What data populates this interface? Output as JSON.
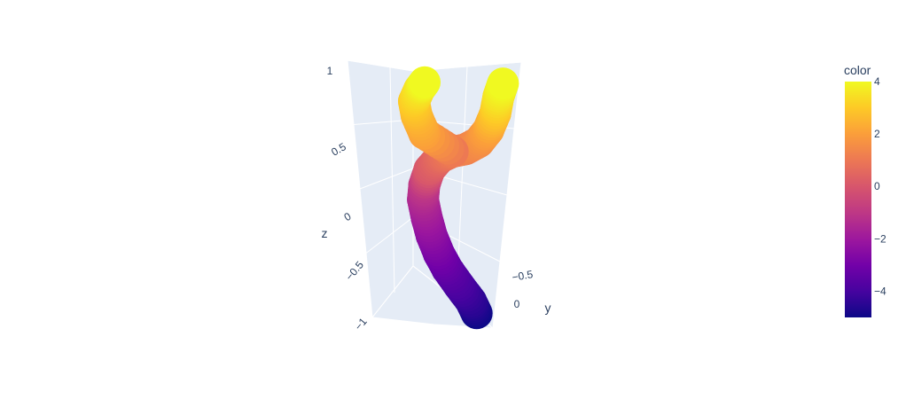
{
  "chart_data": {
    "type": "scatter3d",
    "axes": {
      "z": {
        "label": "z",
        "ticks": [
          "1",
          "0.5",
          "0",
          "−0.5",
          "−1"
        ],
        "range": [
          -1,
          1
        ]
      },
      "y": {
        "label": "y",
        "ticks": [
          "−0.5",
          "0"
        ]
      }
    },
    "colorbar": {
      "title": "color",
      "ticks": [
        "4",
        "2",
        "0",
        "−2",
        "−4"
      ],
      "range": [
        -5,
        4
      ],
      "colorscale": "Plasma"
    },
    "series": [
      {
        "marker_colorscale": "Plasma",
        "points": [
          {
            "y": 0.0,
            "z": -0.95,
            "color": -5
          },
          {
            "y": -0.05,
            "z": -0.85,
            "color": -4.5
          },
          {
            "y": -0.15,
            "z": -0.72,
            "color": -4
          },
          {
            "y": -0.25,
            "z": -0.58,
            "color": -3.5
          },
          {
            "y": -0.32,
            "z": -0.45,
            "color": -3
          },
          {
            "y": -0.38,
            "z": -0.3,
            "color": -2.5
          },
          {
            "y": -0.42,
            "z": -0.15,
            "color": -2
          },
          {
            "y": -0.45,
            "z": 0.0,
            "color": -1.5
          },
          {
            "y": -0.44,
            "z": 0.12,
            "color": -1
          },
          {
            "y": -0.4,
            "z": 0.25,
            "color": 0
          },
          {
            "y": -0.32,
            "z": 0.35,
            "color": 0.5
          },
          {
            "y": -0.22,
            "z": 0.4,
            "color": 1
          },
          {
            "y": -0.12,
            "z": 0.42,
            "color": 1.2
          },
          {
            "y": -0.02,
            "z": 0.48,
            "color": 1.5
          },
          {
            "y": 0.05,
            "z": 0.58,
            "color": 2
          },
          {
            "y": 0.1,
            "z": 0.72,
            "color": 2.8
          },
          {
            "y": 0.12,
            "z": 0.86,
            "color": 3.5
          },
          {
            "y": 0.15,
            "z": 0.97,
            "color": 4
          },
          {
            "y": -0.44,
            "z": 0.55,
            "color": 2
          },
          {
            "y": -0.5,
            "z": 0.7,
            "color": 2.5
          },
          {
            "y": -0.52,
            "z": 0.82,
            "color": 3
          },
          {
            "y": -0.48,
            "z": 0.92,
            "color": 3.5
          },
          {
            "y": -0.44,
            "z": 0.98,
            "color": 4
          }
        ]
      }
    ]
  }
}
